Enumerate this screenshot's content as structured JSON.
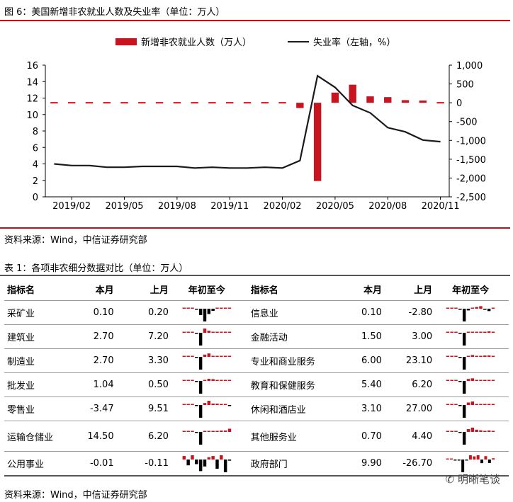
{
  "figure": {
    "title": "图 6：美国新增非农就业人数及失业率（单位：万人）",
    "source": "资料来源：Wind，中信证券研究部"
  },
  "chart_data": {
    "type": "bar",
    "legend": [
      "新增非农就业人数（万人）",
      "失业率（左轴，%）"
    ],
    "legend_placement": "top",
    "x_ticks": [
      "2019/02",
      "2019/05",
      "2019/08",
      "2019/11",
      "2020/02",
      "2020/05",
      "2020/08",
      "2020/11"
    ],
    "left_axis": {
      "ticks": [
        "16",
        "14",
        "12",
        "10",
        "8",
        "6",
        "4",
        "2",
        "0"
      ],
      "ylim": [
        0,
        16
      ]
    },
    "right_axis": {
      "ticks": [
        "1,000",
        "500",
        "0",
        "-500",
        "-1,000",
        "-1,500",
        "-2,000",
        "-2,500"
      ],
      "ylim": [
        -2500,
        1000
      ]
    },
    "months": [
      "2019/01",
      "2019/02",
      "2019/03",
      "2019/04",
      "2019/05",
      "2019/06",
      "2019/07",
      "2019/08",
      "2019/09",
      "2019/10",
      "2019/11",
      "2019/12",
      "2020/01",
      "2020/02",
      "2020/03",
      "2020/04",
      "2020/05",
      "2020/06",
      "2020/07",
      "2020/08",
      "2020/09",
      "2020/10",
      "2020/11"
    ],
    "series": [
      {
        "name": "新增非农就业人数（万人）",
        "axis": "right",
        "values": [
          31,
          5,
          19,
          26,
          8,
          18,
          19,
          17,
          18,
          16,
          26,
          18,
          21,
          27,
          -140,
          -2080,
          270,
          480,
          170,
          150,
          70,
          60,
          25
        ]
      },
      {
        "name": "失业率（左轴，%）",
        "axis": "left",
        "values": [
          4.0,
          3.8,
          3.8,
          3.6,
          3.6,
          3.7,
          3.7,
          3.7,
          3.5,
          3.6,
          3.5,
          3.5,
          3.6,
          3.5,
          4.4,
          14.7,
          13.3,
          11.1,
          10.2,
          8.4,
          7.9,
          6.9,
          6.7
        ]
      }
    ]
  },
  "table": {
    "title": "表 1：各项非农细分数据对比（单位：万人）",
    "headers": [
      "指标名",
      "本月",
      "上月",
      "年初至今",
      "指标名",
      "本月",
      "上月",
      "年初至今"
    ],
    "rows": [
      {
        "name": "采矿业",
        "cur": "0.10",
        "prev": "0.20",
        "spark": [
          0.1,
          0.2,
          0.1,
          -0.2,
          -3.0,
          -6.0,
          -2.5,
          -1.0,
          0.2,
          0.3,
          0.2,
          0.1
        ],
        "name2": "信息业",
        "cur2": "0.10",
        "prev2": "-2.80",
        "spark2": [
          0.2,
          0.3,
          0.2,
          -1.0,
          -15,
          -2,
          0.5,
          2.0,
          3.0,
          -1.0,
          -2.8,
          0.1
        ]
      },
      {
        "name": "建筑业",
        "cur": "2.70",
        "prev": "7.20",
        "spark": [
          0.5,
          0.8,
          0.6,
          -3,
          -97,
          45,
          16,
          2,
          4,
          2,
          7.2,
          2.7
        ],
        "name2": "金融活动",
        "cur2": "1.50",
        "prev2": "3.00",
        "spark2": [
          0.5,
          0.5,
          0.3,
          -0.5,
          -27,
          0.5,
          1,
          1.5,
          1.5,
          2,
          3,
          1.5
        ]
      },
      {
        "name": "制造业",
        "cur": "2.70",
        "prev": "3.30",
        "spark": [
          0.5,
          0.5,
          0.3,
          -3,
          -130,
          23,
          35,
          4,
          3,
          6,
          3.3,
          2.7
        ],
        "name2": "专业和商业服务",
        "cur2": "6.00",
        "prev2": "23.10",
        "spark2": [
          0.5,
          0.5,
          0.3,
          -4,
          -210,
          12,
          30,
          17,
          14,
          22,
          23.1,
          6
        ]
      },
      {
        "name": "批发业",
        "cur": "1.04",
        "prev": "0.50",
        "spark": [
          0.3,
          0.3,
          0.2,
          -3,
          -36,
          2,
          6,
          5,
          3,
          2,
          0.5,
          1.04
        ],
        "name2": "教育和保健服务",
        "cur2": "5.40",
        "prev2": "6.20",
        "spark2": [
          0.5,
          0.5,
          0.3,
          -6,
          -270,
          42,
          55,
          22,
          15,
          6,
          6.2,
          5.4
        ]
      },
      {
        "name": "零售业",
        "cur": "-3.47",
        "prev": "9.51",
        "spark": [
          0.3,
          0.3,
          0.2,
          -4,
          -235,
          37,
          84,
          26,
          25,
          14,
          9.51,
          -3.47
        ],
        "name2": "休闲和酒店业",
        "cur2": "3.10",
        "prev2": "27.00",
        "spark2": [
          0.3,
          0.3,
          0.2,
          -45,
          -770,
          150,
          210,
          60,
          32,
          27,
          27,
          3.1
        ]
      },
      {
        "name": "运输仓储业",
        "cur": "14.50",
        "prev": "6.20",
        "spark": [
          0.3,
          0.3,
          0.2,
          -1,
          -58,
          2,
          4,
          3,
          4,
          6,
          6.2,
          14.5
        ],
        "name2": "其他服务业",
        "cur2": "0.70",
        "prev2": "4.40",
        "spark2": [
          0.3,
          0.3,
          0.2,
          -1,
          -40,
          9,
          15,
          7,
          5,
          2,
          4.4,
          0.7
        ]
      },
      {
        "name": "公用事业",
        "cur": "-0.01",
        "prev": "-0.11",
        "spark": [
          0.03,
          -0.05,
          0.04,
          -0.04,
          -0.1,
          -0.06,
          0.02,
          0.03,
          -0.08,
          0.05,
          -0.11,
          -0.01
        ],
        "name2": "政府部门",
        "cur2": "9.90",
        "prev2": "-26.70",
        "spark2": [
          0.5,
          0.4,
          -0.5,
          -2,
          -98,
          -8,
          50,
          24,
          33,
          -28,
          26,
          -26.7,
          9.9
        ]
      }
    ],
    "source": "资料来源：Wind，中信证券研究部"
  },
  "watermark": "明晰笔谈",
  "colors": {
    "bar": "#c8141e",
    "line": "#1a1a1a",
    "rule": "#c0101a",
    "spark_neg": "#000000",
    "spark_pos": "#c8141e"
  }
}
